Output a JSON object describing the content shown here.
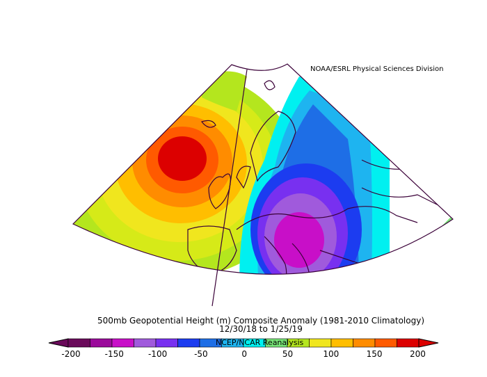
{
  "credit": "NOAA/ESRL Physical Sciences Division",
  "title": {
    "line1": "500mb Geopotential Height (m) Composite Anomaly (1981-2010 Climatology)",
    "line2": "12/30/18  to 1/25/19"
  },
  "source": "NCEP/NCAR Reanalysis",
  "colorbar": {
    "tick_labels": [
      "-200",
      "-150",
      "-100",
      "-50",
      "0",
      "50",
      "100",
      "150",
      "200"
    ],
    "colors": [
      "#6a0a5a",
      "#9b0a9b",
      "#c80fc8",
      "#a05adc",
      "#7830f0",
      "#1c3cf0",
      "#1e6ee6",
      "#1eb4f0",
      "#00f0f0",
      "#78e678",
      "#b4e61e",
      "#f0e61e",
      "#ffbe00",
      "#ff8c00",
      "#ff5a00",
      "#dc0000"
    ]
  }
}
